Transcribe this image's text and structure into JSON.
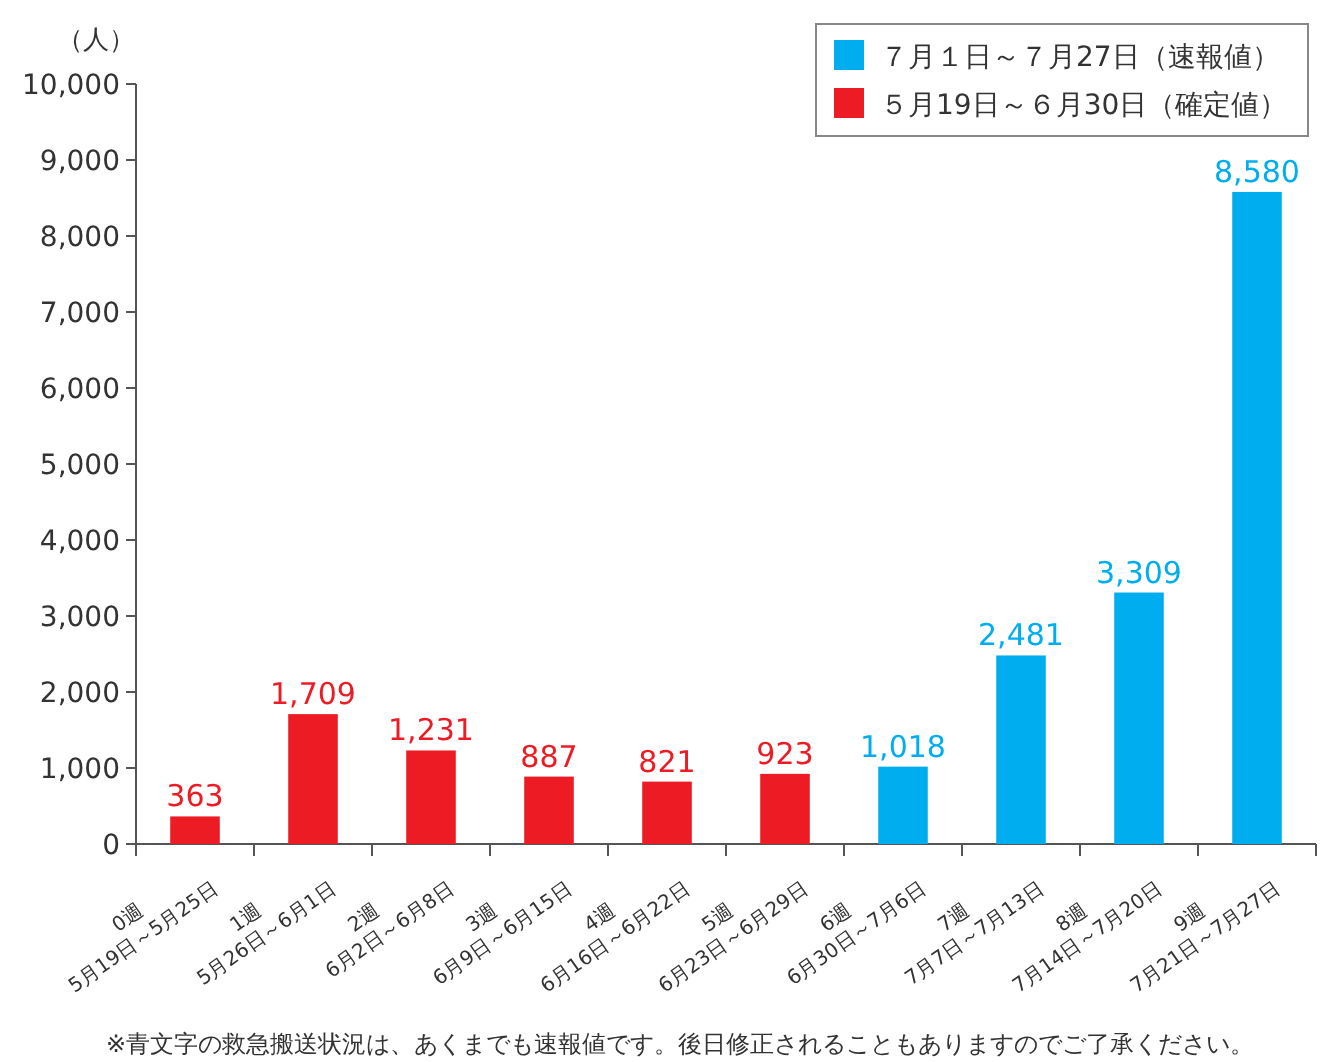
{
  "chart_data": {
    "type": "bar",
    "ylabel": "（人）",
    "categories": [
      "0週\n5月19日～5月25日",
      "1週\n5月26日～6月1日",
      "2週\n6月2日～6月8日",
      "3週\n6月9日～6月15日",
      "4週\n6月16日～6月22日",
      "5週\n6月23日～6月29日",
      "6週\n6月30日～7月6日",
      "7週\n7月7日～7月13日",
      "8週\n7月14日～7月20日",
      "9週\n7月21日～7月27日"
    ],
    "series": [
      {
        "name": "７月１日～７月27日（速報値）",
        "color": "#00aeef",
        "values": [
          null,
          null,
          null,
          null,
          null,
          null,
          1018,
          2481,
          3309,
          8580
        ],
        "value_labels": [
          null,
          null,
          null,
          null,
          null,
          null,
          "1,018",
          "2,481",
          "3,309",
          "8,580"
        ]
      },
      {
        "name": "５月19日～６月30日（確定値）",
        "color": "#ed1c24",
        "values": [
          363,
          1709,
          1231,
          887,
          821,
          923,
          null,
          null,
          null,
          null
        ],
        "value_labels": [
          "363",
          "1,709",
          "1,231",
          "887",
          "821",
          "923",
          null,
          null,
          null,
          null
        ]
      }
    ],
    "ylim": [
      0,
      10000
    ],
    "yticks": [
      0,
      {
        "value": 1000,
        "label": "1,000"
      },
      {
        "value": 2000,
        "label": "2,000"
      },
      {
        "value": 3000,
        "label": "3,000"
      },
      {
        "value": 4000,
        "label": "4,000"
      },
      {
        "value": 5000,
        "label": "5,000"
      },
      {
        "value": 6000,
        "label": "6,000"
      },
      {
        "value": 7000,
        "label": "7,000"
      },
      {
        "value": 8000,
        "label": "8,000"
      },
      {
        "value": 9000,
        "label": "9,000"
      },
      {
        "value": 10000,
        "label": "10,000"
      }
    ],
    "grid": false,
    "legend": "top right",
    "annotations": [
      "※青文字の救急搬送状況は、あくまでも速報値です。後日修正されることもありますのでご了承ください。"
    ]
  }
}
